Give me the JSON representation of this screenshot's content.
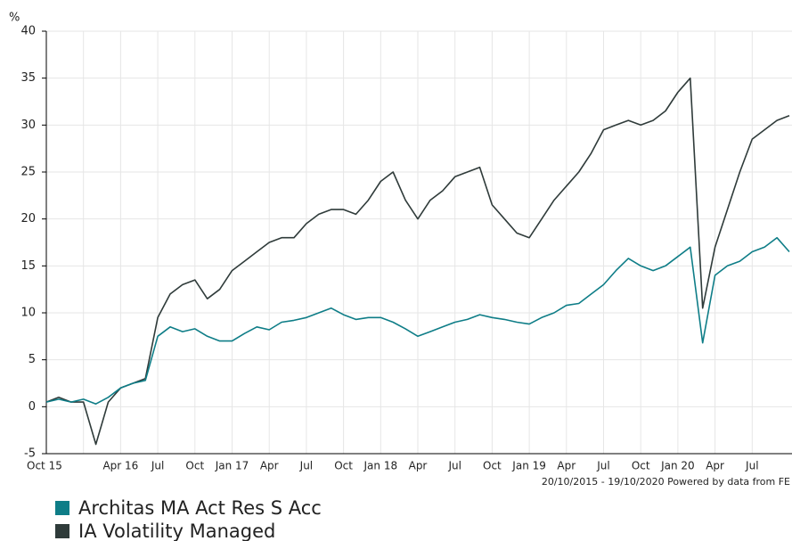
{
  "chart_data": {
    "type": "line",
    "y_label": "%",
    "footer": "20/10/2015 - 19/10/2020 Powered by data from FE",
    "x": [
      "2015-10",
      "2015-11",
      "2015-12",
      "2016-01",
      "2016-02",
      "2016-03",
      "2016-04",
      "2016-05",
      "2016-06",
      "2016-07",
      "2016-08",
      "2016-09",
      "2016-10",
      "2016-11",
      "2016-12",
      "2017-01",
      "2017-02",
      "2017-03",
      "2017-04",
      "2017-05",
      "2017-06",
      "2017-07",
      "2017-08",
      "2017-09",
      "2017-10",
      "2017-11",
      "2017-12",
      "2018-01",
      "2018-02",
      "2018-03",
      "2018-04",
      "2018-05",
      "2018-06",
      "2018-07",
      "2018-08",
      "2018-09",
      "2018-10",
      "2018-11",
      "2018-12",
      "2019-01",
      "2019-02",
      "2019-03",
      "2019-04",
      "2019-05",
      "2019-06",
      "2019-07",
      "2019-08",
      "2019-09",
      "2019-10",
      "2019-11",
      "2019-12",
      "2020-01",
      "2020-02",
      "2020-03",
      "2020-04",
      "2020-05",
      "2020-06",
      "2020-07",
      "2020-08",
      "2020-09",
      "2020-10"
    ],
    "series": [
      {
        "name": "Architas MA Act Res S Acc",
        "color": "#0e7d87",
        "values": [
          0.5,
          0.8,
          0.5,
          0.8,
          0.3,
          1.0,
          2.0,
          2.5,
          2.8,
          7.5,
          8.5,
          8.0,
          8.3,
          7.5,
          7.0,
          7.0,
          7.8,
          8.5,
          8.2,
          9.0,
          9.2,
          9.5,
          10.0,
          10.5,
          9.8,
          9.3,
          9.5,
          9.5,
          9.0,
          8.3,
          7.5,
          8.0,
          8.5,
          9.0,
          9.3,
          9.8,
          9.5,
          9.3,
          9.0,
          8.8,
          9.5,
          10.0,
          10.8,
          11.0,
          12.0,
          13.0,
          14.5,
          15.8,
          15.0,
          14.5,
          15.0,
          16.0,
          17.0,
          6.8,
          14.0,
          15.0,
          15.5,
          16.5,
          17.0,
          18.0,
          16.5
        ]
      },
      {
        "name": "IA Volatility Managed",
        "color": "#2f3b3a",
        "values": [
          0.5,
          1.0,
          0.5,
          0.5,
          -4.0,
          0.5,
          2.0,
          2.5,
          3.0,
          9.5,
          12.0,
          13.0,
          13.5,
          11.5,
          12.5,
          14.5,
          15.5,
          16.5,
          17.5,
          18.0,
          18.0,
          19.5,
          20.5,
          21.0,
          21.0,
          20.5,
          22.0,
          24.0,
          25.0,
          22.0,
          20.0,
          22.0,
          23.0,
          24.5,
          25.0,
          25.5,
          21.5,
          20.0,
          18.5,
          18.0,
          20.0,
          22.0,
          23.5,
          25.0,
          27.0,
          29.5,
          30.0,
          30.5,
          30.0,
          30.5,
          31.5,
          33.5,
          35.0,
          10.5,
          17.0,
          21.0,
          25.0,
          28.5,
          29.5,
          30.5,
          31.0
        ]
      }
    ],
    "xlim": [
      "2015-10",
      "2020-10"
    ],
    "xticks": [
      {
        "value": "2015-10",
        "label": "Oct 15"
      },
      {
        "value": "2016-01",
        "label": null
      },
      {
        "value": "2016-04",
        "label": "Apr 16"
      },
      {
        "value": "2016-07",
        "label": "Jul"
      },
      {
        "value": "2016-10",
        "label": "Oct"
      },
      {
        "value": "2017-01",
        "label": "Jan 17"
      },
      {
        "value": "2017-04",
        "label": "Apr"
      },
      {
        "value": "2017-07",
        "label": "Jul"
      },
      {
        "value": "2017-10",
        "label": "Oct"
      },
      {
        "value": "2018-01",
        "label": "Jan 18"
      },
      {
        "value": "2018-04",
        "label": "Apr"
      },
      {
        "value": "2018-07",
        "label": "Jul"
      },
      {
        "value": "2018-10",
        "label": "Oct"
      },
      {
        "value": "2019-01",
        "label": "Jan 19"
      },
      {
        "value": "2019-04",
        "label": "Apr"
      },
      {
        "value": "2019-07",
        "label": "Jul"
      },
      {
        "value": "2019-10",
        "label": "Oct"
      },
      {
        "value": "2020-01",
        "label": "Jan 20"
      },
      {
        "value": "2020-04",
        "label": "Apr"
      },
      {
        "value": "2020-07",
        "label": "Jul"
      }
    ],
    "ylim": [
      -5,
      40
    ],
    "yticks": [
      -5,
      0,
      5,
      10,
      15,
      20,
      25,
      30,
      35,
      40
    ],
    "grid": true
  }
}
